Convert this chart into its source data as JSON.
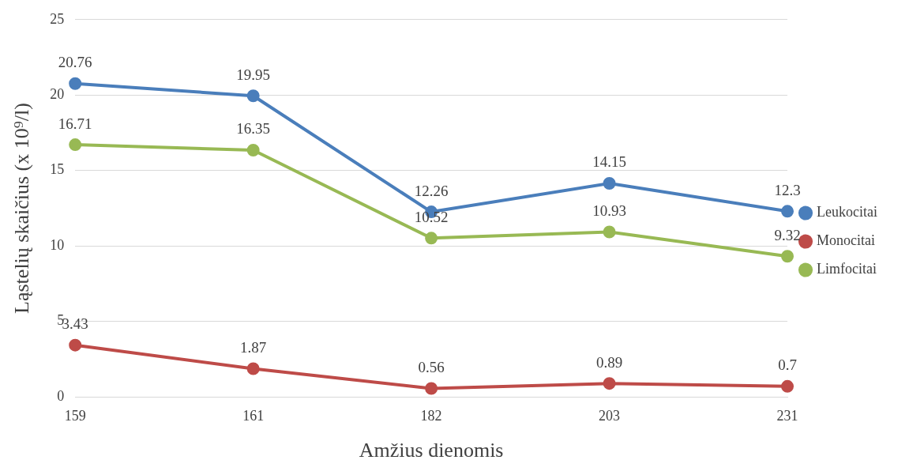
{
  "chart_data": {
    "type": "line",
    "xlabel": "Amžius dienomis",
    "ylabel": "Ląstelių skaičius (x 10⁹/l)",
    "categories": [
      "159",
      "161",
      "182",
      "203",
      "231"
    ],
    "series": [
      {
        "name": "Leukocitai",
        "color": "#4a7ebb",
        "values": [
          20.76,
          19.95,
          12.26,
          14.15,
          12.3
        ]
      },
      {
        "name": "Monocitai",
        "color": "#be4b48",
        "values": [
          3.43,
          1.87,
          0.56,
          0.89,
          0.7
        ]
      },
      {
        "name": "Limfocitai",
        "color": "#98b954",
        "values": [
          16.71,
          16.35,
          10.52,
          10.93,
          9.32
        ]
      }
    ],
    "ylim": [
      0,
      25
    ],
    "yticks": [
      0,
      5,
      10,
      15,
      20,
      25
    ],
    "grid": "y",
    "legend": "right",
    "marker": "circle",
    "line_style": "solid",
    "data_labels": true
  }
}
